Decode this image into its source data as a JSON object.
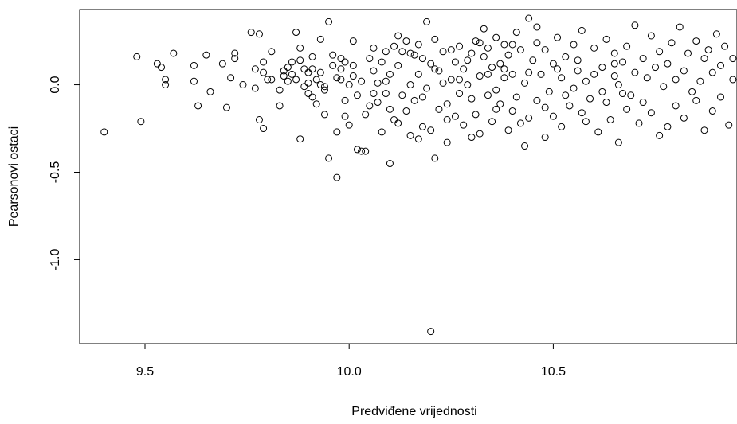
{
  "chart_data": {
    "type": "scatter",
    "title": "",
    "xlabel": "Predviđene vrijednosti",
    "ylabel": "Pearsonovi ostaci",
    "xlim": [
      9.34,
      10.95
    ],
    "ylim": [
      -1.48,
      0.43
    ],
    "x_ticks": [
      9.5,
      10.0,
      10.5
    ],
    "x_tick_labels": [
      "9.5",
      "10.0",
      "10.5"
    ],
    "y_ticks": [
      -1.0,
      -0.5,
      0.0
    ],
    "y_tick_labels": [
      "-1.0",
      "-0.5",
      "0.0"
    ],
    "grid": false,
    "legend": "none",
    "marker": "open-circle",
    "points": [
      [
        9.4,
        -0.27
      ],
      [
        9.48,
        0.16
      ],
      [
        9.49,
        -0.21
      ],
      [
        9.53,
        0.12
      ],
      [
        9.54,
        0.1
      ],
      [
        9.55,
        0.03
      ],
      [
        9.55,
        0.0
      ],
      [
        9.57,
        0.18
      ],
      [
        9.62,
        0.11
      ],
      [
        9.62,
        0.02
      ],
      [
        9.63,
        -0.12
      ],
      [
        9.65,
        0.17
      ],
      [
        9.66,
        -0.04
      ],
      [
        9.69,
        0.12
      ],
      [
        9.7,
        -0.13
      ],
      [
        9.71,
        0.04
      ],
      [
        9.72,
        0.15
      ],
      [
        9.72,
        0.18
      ],
      [
        9.74,
        0.0
      ],
      [
        9.76,
        0.3
      ],
      [
        9.77,
        0.09
      ],
      [
        9.77,
        -0.02
      ],
      [
        9.78,
        0.29
      ],
      [
        9.78,
        -0.2
      ],
      [
        9.79,
        -0.25
      ],
      [
        9.79,
        0.13
      ],
      [
        9.8,
        0.03
      ],
      [
        9.81,
        0.19
      ],
      [
        9.81,
        0.03
      ],
      [
        9.83,
        -0.03
      ],
      [
        9.83,
        -0.12
      ],
      [
        9.84,
        0.05
      ],
      [
        9.84,
        0.08
      ],
      [
        9.85,
        0.1
      ],
      [
        9.86,
        0.13
      ],
      [
        9.86,
        0.06
      ],
      [
        9.87,
        0.03
      ],
      [
        9.87,
        0.3
      ],
      [
        9.88,
        -0.31
      ],
      [
        9.88,
        0.14
      ],
      [
        9.89,
        0.09
      ],
      [
        9.89,
        -0.01
      ],
      [
        9.9,
        0.07
      ],
      [
        9.9,
        0.01
      ],
      [
        9.9,
        -0.05
      ],
      [
        9.91,
        0.16
      ],
      [
        9.91,
        -0.07
      ],
      [
        9.91,
        0.09
      ],
      [
        9.92,
        0.03
      ],
      [
        9.92,
        -0.11
      ],
      [
        9.93,
        0.26
      ],
      [
        9.93,
        0.07
      ],
      [
        9.93,
        0.0
      ],
      [
        9.94,
        -0.03
      ],
      [
        9.94,
        -0.17
      ],
      [
        9.95,
        0.36
      ],
      [
        9.95,
        -0.42
      ],
      [
        9.96,
        0.17
      ],
      [
        9.96,
        0.11
      ],
      [
        9.97,
        0.04
      ],
      [
        9.97,
        -0.27
      ],
      [
        9.97,
        -0.53
      ],
      [
        9.98,
        0.09
      ],
      [
        9.98,
        0.15
      ],
      [
        9.98,
        0.03
      ],
      [
        9.99,
        -0.09
      ],
      [
        9.99,
        -0.18
      ],
      [
        10.0,
        0.0
      ],
      [
        10.0,
        -0.23
      ],
      [
        10.01,
        0.05
      ],
      [
        10.01,
        0.11
      ],
      [
        10.01,
        0.25
      ],
      [
        10.02,
        -0.37
      ],
      [
        10.02,
        -0.06
      ],
      [
        10.03,
        -0.38
      ],
      [
        10.03,
        0.02
      ],
      [
        10.04,
        -0.38
      ],
      [
        10.05,
        0.15
      ],
      [
        10.05,
        -0.12
      ],
      [
        10.06,
        -0.05
      ],
      [
        10.06,
        0.08
      ],
      [
        10.07,
        0.01
      ],
      [
        10.07,
        -0.1
      ],
      [
        10.08,
        0.13
      ],
      [
        10.08,
        -0.27
      ],
      [
        10.09,
        -0.05
      ],
      [
        10.09,
        0.19
      ],
      [
        10.1,
        -0.45
      ],
      [
        10.1,
        -0.14
      ],
      [
        10.1,
        0.06
      ],
      [
        10.11,
        0.22
      ],
      [
        10.11,
        -0.2
      ],
      [
        10.12,
        0.28
      ],
      [
        10.12,
        0.11
      ],
      [
        10.13,
        -0.06
      ],
      [
        10.13,
        0.19
      ],
      [
        10.14,
        -0.15
      ],
      [
        10.14,
        0.25
      ],
      [
        10.15,
        0.0
      ],
      [
        10.15,
        -0.29
      ],
      [
        10.16,
        0.17
      ],
      [
        10.16,
        -0.09
      ],
      [
        10.17,
        0.23
      ],
      [
        10.17,
        -0.31
      ],
      [
        10.17,
        0.06
      ],
      [
        10.18,
        -0.24
      ],
      [
        10.18,
        0.15
      ],
      [
        10.19,
        0.36
      ],
      [
        10.19,
        -0.02
      ],
      [
        10.2,
        0.12
      ],
      [
        10.2,
        -0.26
      ],
      [
        10.21,
        0.26
      ],
      [
        10.21,
        -0.42
      ],
      [
        10.22,
        0.08
      ],
      [
        10.22,
        -0.14
      ],
      [
        10.23,
        0.19
      ],
      [
        10.23,
        0.01
      ],
      [
        10.24,
        -0.33
      ],
      [
        10.24,
        -0.11
      ],
      [
        10.25,
        0.2
      ],
      [
        10.25,
        0.03
      ],
      [
        10.26,
        -0.18
      ],
      [
        10.26,
        0.13
      ],
      [
        10.27,
        0.22
      ],
      [
        10.27,
        -0.05
      ],
      [
        10.28,
        0.09
      ],
      [
        10.28,
        -0.23
      ],
      [
        10.29,
        0.14
      ],
      [
        10.29,
        0.0
      ],
      [
        10.3,
        -0.08
      ],
      [
        10.3,
        0.18
      ],
      [
        10.31,
        0.25
      ],
      [
        10.31,
        -0.17
      ],
      [
        10.32,
        0.05
      ],
      [
        10.32,
        -0.28
      ],
      [
        10.33,
        0.16
      ],
      [
        10.33,
        0.32
      ],
      [
        10.34,
        -0.06
      ],
      [
        10.34,
        0.21
      ],
      [
        10.35,
        0.1
      ],
      [
        10.35,
        -0.21
      ],
      [
        10.36,
        0.27
      ],
      [
        10.36,
        -0.03
      ],
      [
        10.37,
        0.12
      ],
      [
        10.37,
        -0.11
      ],
      [
        10.38,
        0.23
      ],
      [
        10.38,
        0.04
      ],
      [
        10.39,
        -0.26
      ],
      [
        10.39,
        0.17
      ],
      [
        10.4,
        0.06
      ],
      [
        10.4,
        -0.15
      ],
      [
        10.41,
        0.3
      ],
      [
        10.41,
        -0.07
      ],
      [
        10.42,
        0.2
      ],
      [
        10.43,
        0.01
      ],
      [
        10.43,
        -0.35
      ],
      [
        10.44,
        0.38
      ],
      [
        10.44,
        -0.19
      ],
      [
        10.45,
        0.14
      ],
      [
        10.46,
        0.24
      ],
      [
        10.46,
        -0.09
      ],
      [
        10.47,
        0.06
      ],
      [
        10.48,
        -0.3
      ],
      [
        10.48,
        0.2
      ],
      [
        10.49,
        -0.04
      ],
      [
        10.5,
        0.12
      ],
      [
        10.5,
        -0.18
      ],
      [
        10.51,
        0.27
      ],
      [
        10.52,
        -0.24
      ],
      [
        10.52,
        0.04
      ],
      [
        10.53,
        0.16
      ],
      [
        10.54,
        -0.12
      ],
      [
        10.55,
        0.23
      ],
      [
        10.55,
        -0.02
      ],
      [
        10.56,
        0.08
      ],
      [
        10.57,
        -0.16
      ],
      [
        10.57,
        0.31
      ],
      [
        10.58,
        0.02
      ],
      [
        10.59,
        -0.08
      ],
      [
        10.6,
        0.21
      ],
      [
        10.61,
        -0.27
      ],
      [
        10.62,
        0.1
      ],
      [
        10.62,
        -0.04
      ],
      [
        10.63,
        0.26
      ],
      [
        10.64,
        -0.2
      ],
      [
        10.65,
        0.05
      ],
      [
        10.65,
        0.18
      ],
      [
        10.66,
        -0.33
      ],
      [
        10.66,
        0.0
      ],
      [
        10.67,
        0.13
      ],
      [
        10.68,
        -0.14
      ],
      [
        10.68,
        0.22
      ],
      [
        10.69,
        -0.06
      ],
      [
        10.7,
        0.07
      ],
      [
        10.7,
        0.34
      ],
      [
        10.71,
        -0.22
      ],
      [
        10.72,
        0.15
      ],
      [
        10.72,
        -0.1
      ],
      [
        10.73,
        0.04
      ],
      [
        10.74,
        0.28
      ],
      [
        10.74,
        -0.16
      ],
      [
        10.75,
        0.1
      ],
      [
        10.76,
        -0.29
      ],
      [
        10.76,
        0.19
      ],
      [
        10.77,
        -0.01
      ],
      [
        10.78,
        0.12
      ],
      [
        10.78,
        -0.24
      ],
      [
        10.79,
        0.24
      ],
      [
        10.8,
        0.03
      ],
      [
        10.8,
        -0.12
      ],
      [
        10.81,
        0.33
      ],
      [
        10.82,
        0.08
      ],
      [
        10.82,
        -0.19
      ],
      [
        10.83,
        0.18
      ],
      [
        10.84,
        -0.04
      ],
      [
        10.85,
        0.25
      ],
      [
        10.85,
        -0.09
      ],
      [
        10.86,
        0.02
      ],
      [
        10.87,
        0.15
      ],
      [
        10.87,
        -0.26
      ],
      [
        10.88,
        0.2
      ],
      [
        10.89,
        -0.15
      ],
      [
        10.89,
        0.07
      ],
      [
        10.9,
        0.29
      ],
      [
        10.91,
        -0.07
      ],
      [
        10.91,
        0.11
      ],
      [
        10.92,
        0.22
      ],
      [
        10.93,
        -0.23
      ],
      [
        10.94,
        0.03
      ],
      [
        10.94,
        0.15
      ],
      [
        10.2,
        -1.41
      ],
      [
        9.79,
        0.07
      ],
      [
        9.85,
        0.02
      ],
      [
        9.88,
        0.21
      ],
      [
        9.94,
        -0.01
      ],
      [
        9.99,
        0.13
      ],
      [
        10.04,
        -0.17
      ],
      [
        10.06,
        0.21
      ],
      [
        10.09,
        0.02
      ],
      [
        10.12,
        -0.22
      ],
      [
        10.15,
        0.18
      ],
      [
        10.18,
        -0.07
      ],
      [
        10.21,
        0.09
      ],
      [
        10.24,
        -0.2
      ],
      [
        10.27,
        0.03
      ],
      [
        10.3,
        -0.3
      ],
      [
        10.32,
        0.24
      ],
      [
        10.34,
        0.06
      ],
      [
        10.36,
        -0.14
      ],
      [
        10.38,
        0.09
      ],
      [
        10.4,
        0.23
      ],
      [
        10.42,
        -0.22
      ],
      [
        10.44,
        0.07
      ],
      [
        10.46,
        0.33
      ],
      [
        10.48,
        -0.13
      ],
      [
        10.51,
        0.09
      ],
      [
        10.53,
        -0.06
      ],
      [
        10.56,
        0.14
      ],
      [
        10.58,
        -0.21
      ],
      [
        10.6,
        0.06
      ],
      [
        10.63,
        -0.1
      ],
      [
        10.65,
        0.12
      ],
      [
        10.67,
        -0.05
      ]
    ]
  }
}
